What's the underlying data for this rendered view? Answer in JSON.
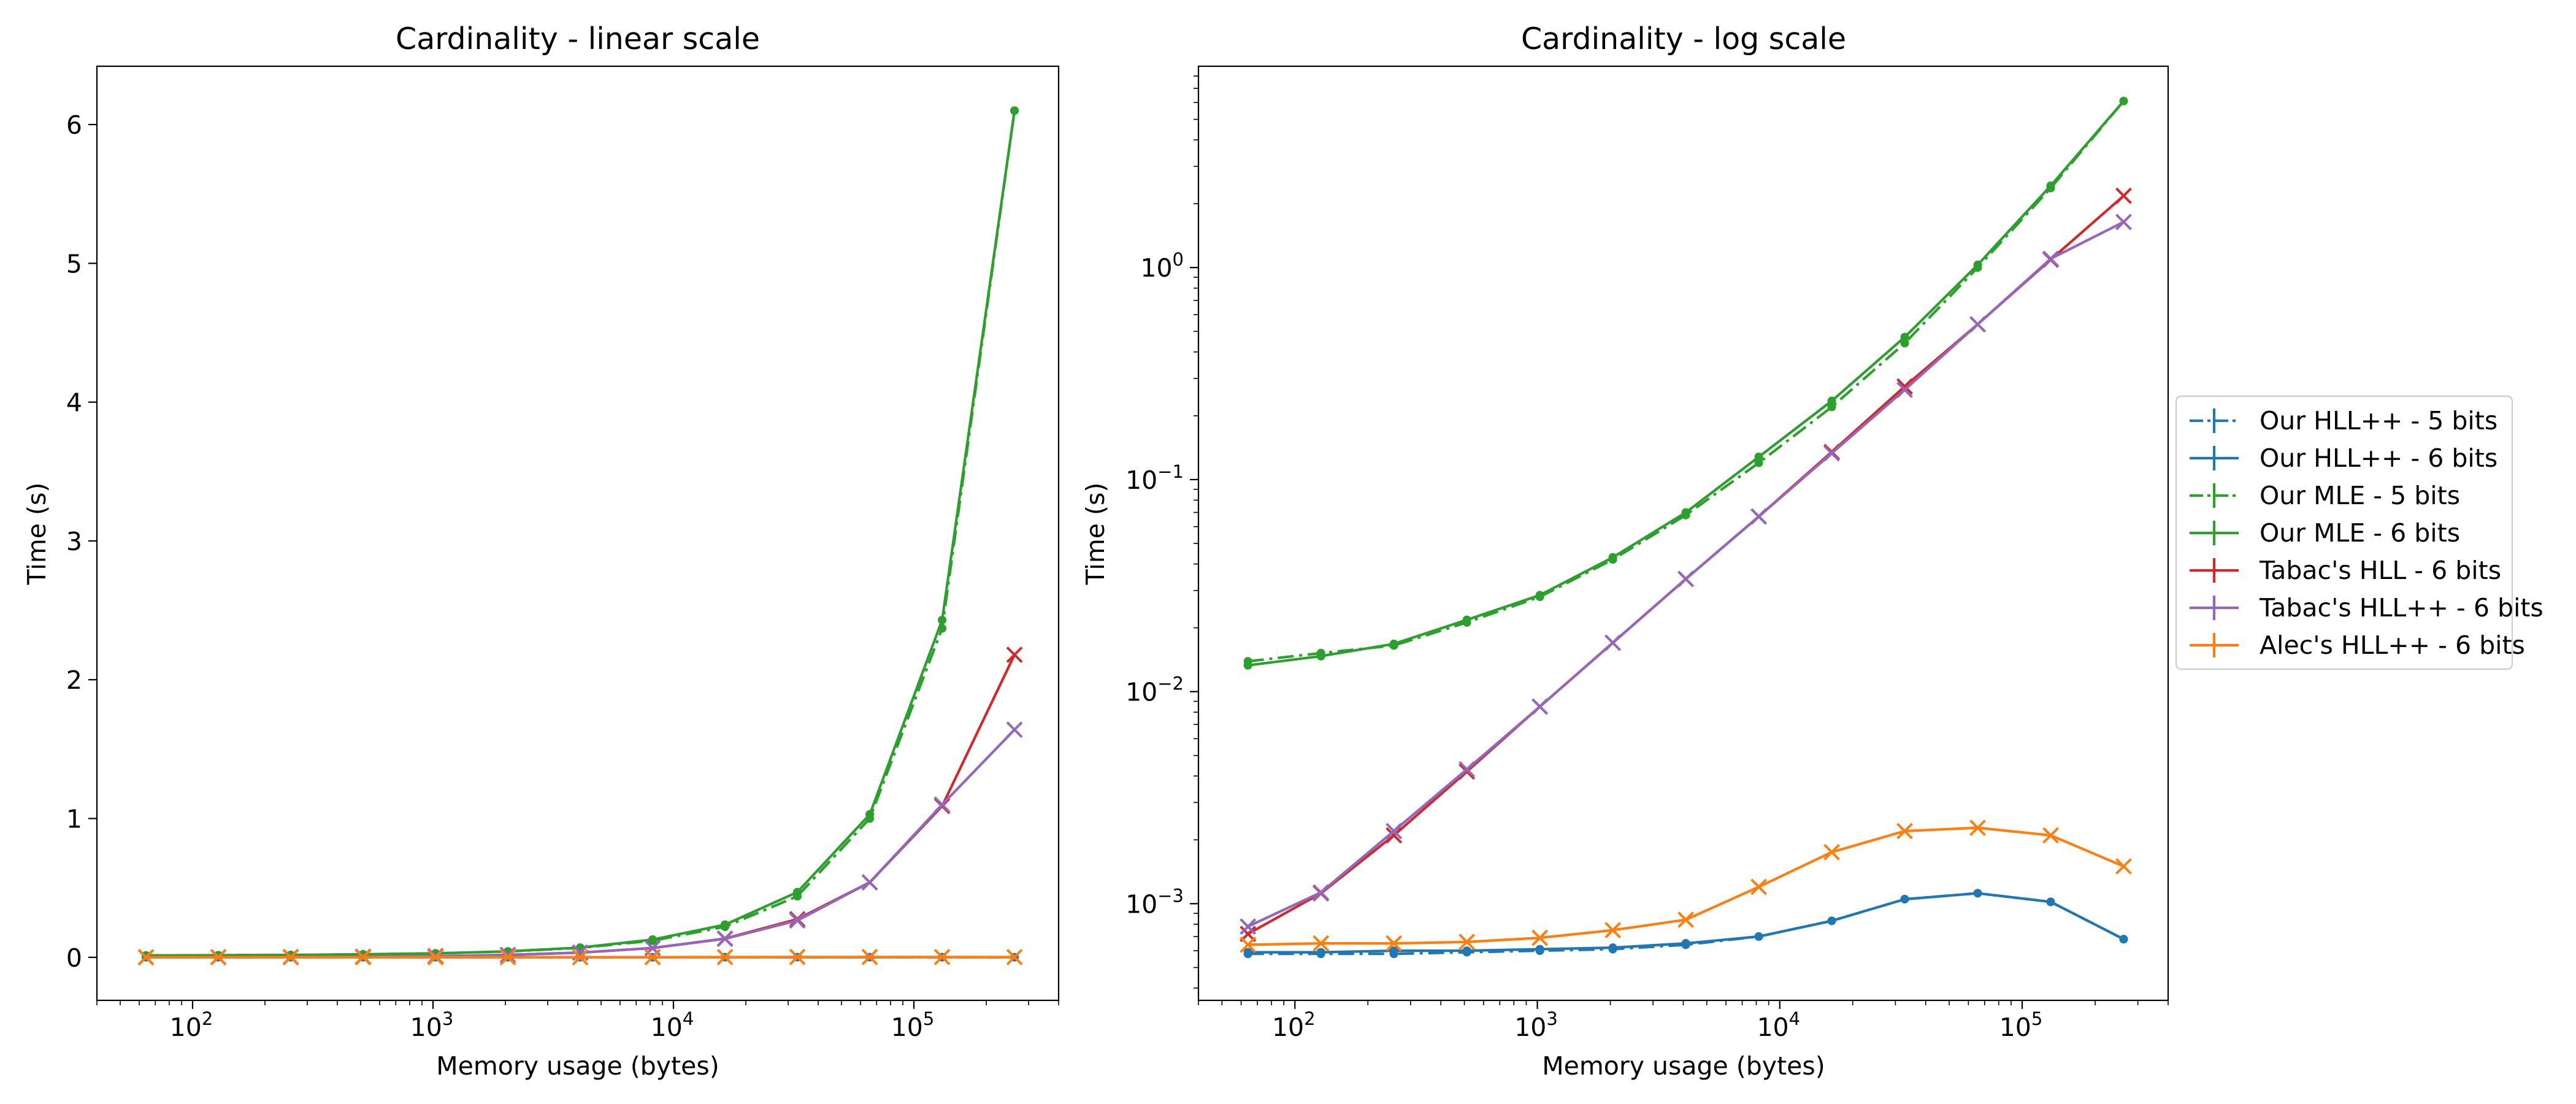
{
  "chart_data": [
    {
      "type": "line",
      "title": "Cardinality - linear scale",
      "xlabel": "Memory usage (bytes)",
      "ylabel": "Time (s)",
      "xscale": "log",
      "yscale": "linear",
      "xlim": [
        40,
        400000
      ],
      "ylim": [
        -0.31,
        6.42
      ],
      "xticks": [
        {
          "value": 100,
          "label": "10",
          "exp": "2"
        },
        {
          "value": 1000,
          "label": "10",
          "exp": "3"
        },
        {
          "value": 10000,
          "label": "10",
          "exp": "4"
        },
        {
          "value": 100000,
          "label": "10",
          "exp": "5"
        }
      ],
      "yticks": [
        {
          "value": 0,
          "label": "0"
        },
        {
          "value": 1,
          "label": "1"
        },
        {
          "value": 2,
          "label": "2"
        },
        {
          "value": 3,
          "label": "3"
        },
        {
          "value": 4,
          "label": "4"
        },
        {
          "value": 5,
          "label": "5"
        },
        {
          "value": 6,
          "label": "6"
        }
      ],
      "grid": false
    },
    {
      "type": "line",
      "title": "Cardinality - log scale",
      "xlabel": "Memory usage (bytes)",
      "ylabel": "Time (s)",
      "xscale": "log",
      "yscale": "log",
      "xlim": [
        40,
        400000
      ],
      "ylim": [
        0.00035,
        8.9
      ],
      "xticks": [
        {
          "value": 100,
          "label": "10",
          "exp": "2"
        },
        {
          "value": 1000,
          "label": "10",
          "exp": "3"
        },
        {
          "value": 10000,
          "label": "10",
          "exp": "4"
        },
        {
          "value": 100000,
          "label": "10",
          "exp": "5"
        }
      ],
      "yticks": [
        {
          "value": 0.001,
          "label": "10",
          "exp": "−3"
        },
        {
          "value": 0.01,
          "label": "10",
          "exp": "−2"
        },
        {
          "value": 0.1,
          "label": "10",
          "exp": "−1"
        },
        {
          "value": 1,
          "label": "10",
          "exp": "0"
        }
      ],
      "grid": false,
      "legend": "outside-right"
    }
  ],
  "x": [
    64,
    128,
    256,
    512,
    1024,
    2048,
    4096,
    8192,
    16384,
    32768,
    65536,
    131072,
    262144
  ],
  "series": [
    {
      "name": "Our HLL++ - 5 bits",
      "color": "#1f77b4",
      "linestyle": "dashdot",
      "marker": "dot",
      "values": [
        0.00058,
        0.00058,
        0.00058,
        0.00059,
        0.0006,
        0.00061,
        0.00064,
        0.0007,
        0.00083,
        0.00105,
        0.00112,
        0.00102,
        0.00068
      ]
    },
    {
      "name": "Our HLL++ - 6 bits",
      "color": "#1f77b4",
      "linestyle": "solid",
      "marker": "dot",
      "values": [
        0.00059,
        0.00059,
        0.0006,
        0.0006,
        0.00061,
        0.00062,
        0.00065,
        0.0007,
        0.00083,
        0.00105,
        0.00112,
        0.00102,
        0.00068
      ]
    },
    {
      "name": "Our MLE - 5 bits",
      "color": "#2ca02c",
      "linestyle": "dashdot",
      "marker": "dot",
      "values": [
        0.0139,
        0.0152,
        0.0165,
        0.0212,
        0.028,
        0.042,
        0.068,
        0.12,
        0.22,
        0.44,
        1.0,
        2.37,
        6.1
      ]
    },
    {
      "name": "Our MLE - 6 bits",
      "color": "#2ca02c",
      "linestyle": "solid",
      "marker": "dot",
      "values": [
        0.0133,
        0.0147,
        0.0168,
        0.0218,
        0.0285,
        0.043,
        0.07,
        0.128,
        0.235,
        0.47,
        1.03,
        2.43,
        6.1
      ]
    },
    {
      "name": "Tabac's HLL - 6 bits",
      "color": "#d62728",
      "linestyle": "solid",
      "marker": "x",
      "values": [
        0.00072,
        0.00112,
        0.0021,
        0.0042,
        0.0085,
        0.017,
        0.034,
        0.067,
        0.135,
        0.275,
        0.54,
        1.09,
        2.18
      ]
    },
    {
      "name": "Tabac's HLL++ - 6 bits",
      "color": "#9467bd",
      "linestyle": "solid",
      "marker": "x",
      "values": [
        0.00078,
        0.00113,
        0.0022,
        0.0043,
        0.0085,
        0.017,
        0.034,
        0.067,
        0.133,
        0.265,
        0.54,
        1.1,
        1.64
      ]
    },
    {
      "name": "Alec's HLL++ - 6 bits",
      "color": "#ff7f0e",
      "linestyle": "solid",
      "marker": "x",
      "values": [
        0.00064,
        0.00065,
        0.00065,
        0.00066,
        0.00069,
        0.00075,
        0.00084,
        0.0012,
        0.00175,
        0.0022,
        0.00228,
        0.0021,
        0.0015
      ]
    }
  ]
}
